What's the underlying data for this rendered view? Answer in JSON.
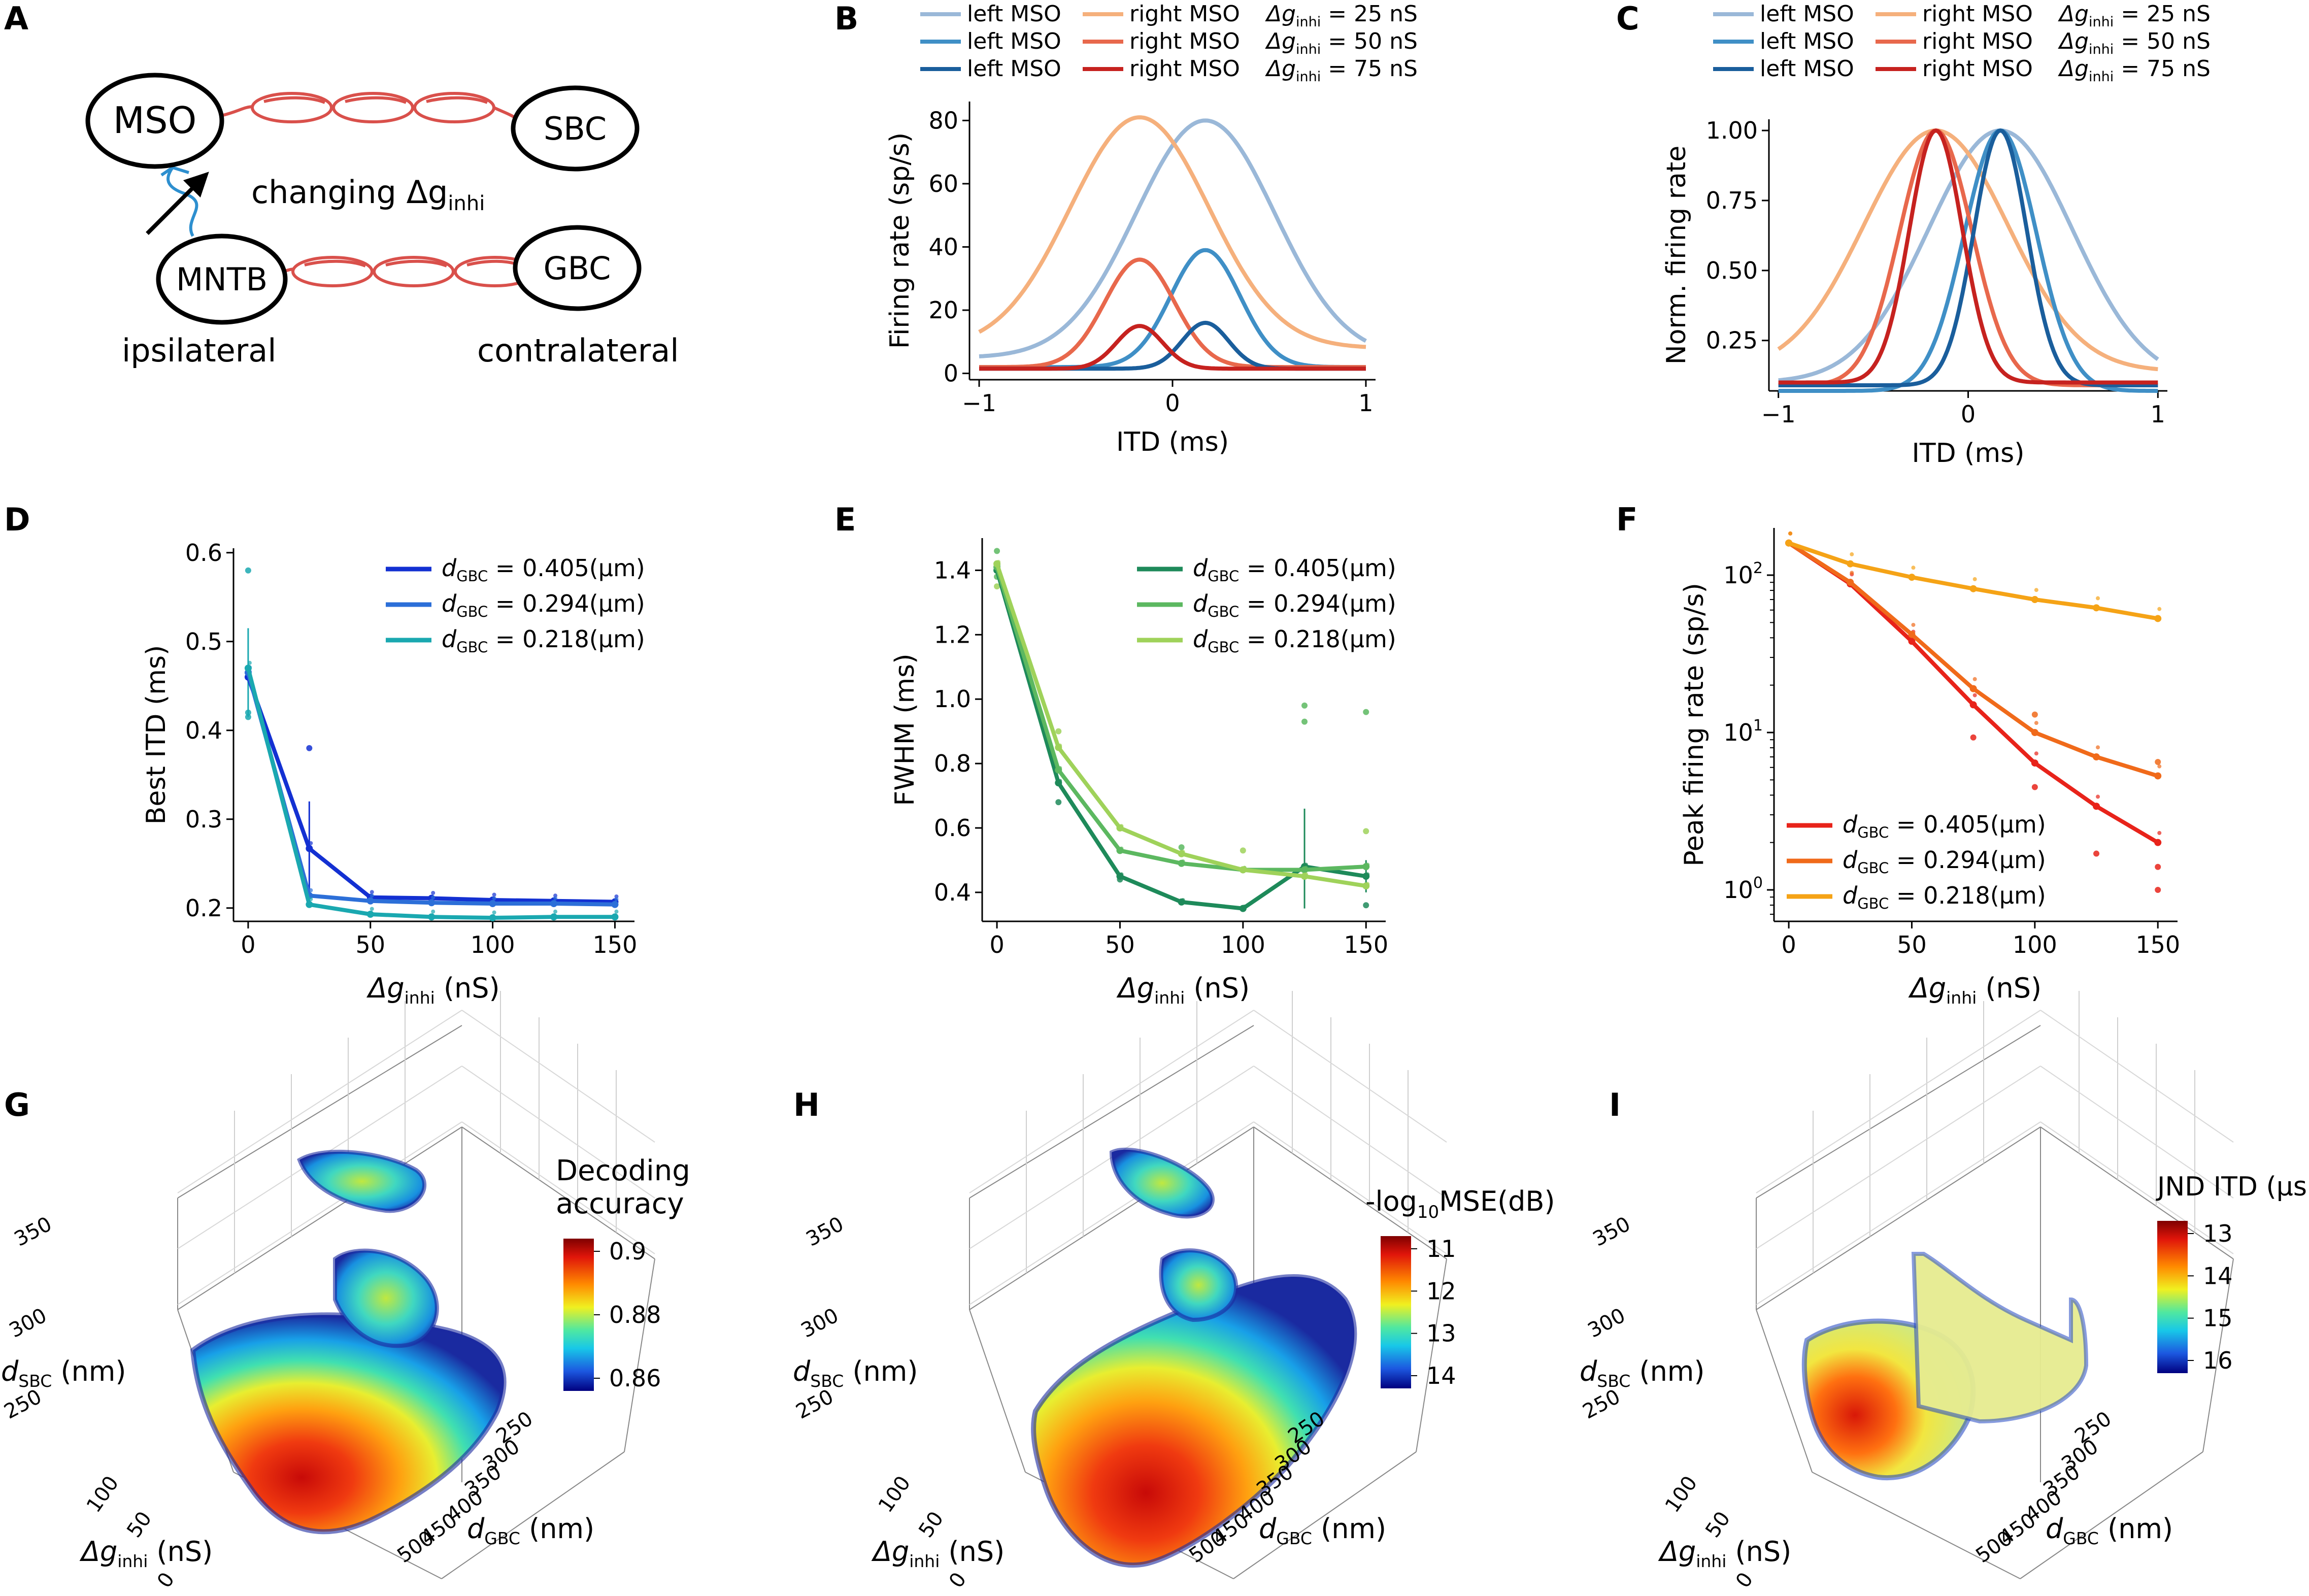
{
  "panel_labels": [
    "A",
    "B",
    "C",
    "D",
    "E",
    "F",
    "G",
    "H",
    "I"
  ],
  "schematic": {
    "nodes": {
      "mso": "MSO",
      "sbc": "SBC",
      "mntb": "MNTB",
      "gbc": "GBC"
    },
    "label_changing": "changing Δg",
    "label_changing_sub": "inhi",
    "label_ipsilateral": "ipsilateral",
    "label_contralateral": "contralateral"
  },
  "legend_tuning": {
    "rows": [
      {
        "left": "left MSO",
        "right": "right MSO",
        "dg": "Δg",
        "sub": "inhi",
        "value": " = 25 nS"
      },
      {
        "left": "left MSO",
        "right": "right MSO",
        "dg": "Δg",
        "sub": "inhi",
        "value": " = 50 nS"
      },
      {
        "left": "left MSO",
        "right": "right MSO",
        "dg": "Δg",
        "sub": "inhi",
        "value": " = 75 nS"
      }
    ],
    "left_colors": [
      "#9ab8d8",
      "#3f8fc6",
      "#1a5e9c"
    ],
    "right_colors": [
      "#f5b07c",
      "#e8684c",
      "#c6221f"
    ]
  },
  "legend_d": {
    "d": "d",
    "sub": "GBC",
    "entries": [
      " = 0.405(μm)",
      " = 0.294(μm)",
      " = 0.218(μm)"
    ]
  },
  "legend_e": {
    "d": "d",
    "sub": "GBC",
    "entries": [
      " = 0.405(μm)",
      " = 0.294(μm)",
      " = 0.218(μm)"
    ]
  },
  "legend_f": {
    "d": "d",
    "sub": "GBC",
    "entries": [
      " = 0.405(μm)",
      " = 0.294(μm)",
      " = 0.218(μm)"
    ]
  },
  "chart_data": [
    {
      "id": "B",
      "type": "line",
      "xlabel": "ITD (ms)",
      "ylabel": "Firing rate (sp/s)",
      "xlim": [
        -1.05,
        1.05
      ],
      "ylim": [
        -2,
        86
      ],
      "xticks": [
        -1,
        0,
        1
      ],
      "xtick_labels": [
        "−1",
        "0",
        "1"
      ],
      "yticks": [
        0,
        20,
        40,
        60,
        80
      ],
      "ytick_labels": [
        "0",
        "20",
        "40",
        "60",
        "80"
      ],
      "series": [
        {
          "name": "left MSO, Δg_inhi = 25 nS",
          "color": "#9ab8d8",
          "peak_x": 0.17,
          "peak": 80,
          "sigma": 0.36,
          "base": 5
        },
        {
          "name": "right MSO, Δg_inhi = 25 nS",
          "color": "#f5b07c",
          "peak_x": -0.17,
          "peak": 81,
          "sigma": 0.36,
          "base": 8
        },
        {
          "name": "left MSO, Δg_inhi = 50 nS",
          "color": "#3f8fc6",
          "peak_x": 0.17,
          "peak": 39,
          "sigma": 0.18,
          "base": 2
        },
        {
          "name": "right MSO, Δg_inhi = 50 nS",
          "color": "#e8684c",
          "peak_x": -0.17,
          "peak": 36,
          "sigma": 0.18,
          "base": 2
        },
        {
          "name": "left MSO, Δg_inhi = 75 nS",
          "color": "#1a5e9c",
          "peak_x": 0.17,
          "peak": 16,
          "sigma": 0.12,
          "base": 1.5
        },
        {
          "name": "right MSO, Δg_inhi = 75 nS",
          "color": "#c6221f",
          "peak_x": -0.17,
          "peak": 15,
          "sigma": 0.12,
          "base": 1.5
        }
      ]
    },
    {
      "id": "C",
      "type": "line",
      "xlabel": "ITD (ms)",
      "ylabel": "Norm. firing rate",
      "xlim": [
        -1.05,
        1.05
      ],
      "ylim": [
        0.07,
        1.04
      ],
      "xticks": [
        -1,
        0,
        1
      ],
      "xtick_labels": [
        "−1",
        "0",
        "1"
      ],
      "yticks": [
        0.25,
        0.5,
        0.75,
        1.0
      ],
      "ytick_labels": [
        "0.25",
        "0.50",
        "0.75",
        "1.00"
      ],
      "series": [
        {
          "name": "left MSO, 25 nS",
          "color": "#9ab8d8",
          "peak_x": 0.17,
          "peak": 1.0,
          "sigma": 0.38,
          "base": 0.1
        },
        {
          "name": "right MSO, 25 nS",
          "color": "#f5b07c",
          "peak_x": -0.17,
          "peak": 1.0,
          "sigma": 0.38,
          "base": 0.14
        },
        {
          "name": "left MSO, 50 nS",
          "color": "#3f8fc6",
          "peak_x": 0.17,
          "peak": 1.0,
          "sigma": 0.19,
          "base": 0.07
        },
        {
          "name": "right MSO, 50 nS",
          "color": "#e8684c",
          "peak_x": -0.17,
          "peak": 1.0,
          "sigma": 0.19,
          "base": 0.09
        },
        {
          "name": "left MSO, 75 nS",
          "color": "#1a5e9c",
          "peak_x": 0.17,
          "peak": 1.0,
          "sigma": 0.14,
          "base": 0.09
        },
        {
          "name": "right MSO, 75 nS",
          "color": "#c6221f",
          "peak_x": -0.17,
          "peak": 1.0,
          "sigma": 0.14,
          "base": 0.1
        }
      ]
    },
    {
      "id": "D",
      "type": "line",
      "xlabel": "Δg_inhi (nS)",
      "ylabel": "Best ITD (ms)",
      "xlim": [
        -6,
        158
      ],
      "ylim": [
        0.185,
        0.605
      ],
      "xticks": [
        0,
        50,
        100,
        150
      ],
      "xtick_labels": [
        "0",
        "50",
        "100",
        "150"
      ],
      "yticks": [
        0.2,
        0.3,
        0.4,
        0.5,
        0.6
      ],
      "ytick_labels": [
        "0.2",
        "0.3",
        "0.4",
        "0.5",
        "0.6"
      ],
      "x": [
        0,
        25,
        50,
        75,
        100,
        125,
        150
      ],
      "series": [
        {
          "name": "d_GBC = 0.405(μm)",
          "color": "#1330d2",
          "values": [
            0.46,
            0.267,
            0.212,
            0.211,
            0.209,
            0.208,
            0.207
          ]
        },
        {
          "name": "d_GBC = 0.294(μm)",
          "color": "#2c6fd8",
          "values": [
            0.465,
            0.214,
            0.208,
            0.206,
            0.205,
            0.205,
            0.204
          ]
        },
        {
          "name": "d_GBC = 0.218(μm)",
          "color": "#1aa8b0",
          "values": [
            0.47,
            0.204,
            0.193,
            0.19,
            0.189,
            0.19,
            0.19
          ]
        }
      ],
      "scatter": [
        [
          0,
          0.58,
          "#1aa8b0"
        ],
        [
          0,
          0.415,
          "#1aa8b0"
        ],
        [
          0,
          0.42,
          "#1aa8b0"
        ],
        [
          25,
          0.38,
          "#1330d2"
        ]
      ],
      "errorbars": [
        [
          0,
          0.415,
          0.515,
          "#1aa8b0"
        ],
        [
          25,
          0.21,
          0.32,
          "#1330d2"
        ]
      ]
    },
    {
      "id": "E",
      "type": "line",
      "xlabel": "Δg_inhi (nS)",
      "ylabel": "FWHM (ms)",
      "xlim": [
        -6,
        158
      ],
      "ylim": [
        0.31,
        1.5
      ],
      "xticks": [
        0,
        50,
        100,
        150
      ],
      "xtick_labels": [
        "0",
        "50",
        "100",
        "150"
      ],
      "yticks": [
        0.4,
        0.6,
        0.8,
        1.0,
        1.2,
        1.4
      ],
      "ytick_labels": [
        "0.4",
        "0.6",
        "0.8",
        "1.0",
        "1.2",
        "1.4"
      ],
      "x": [
        0,
        25,
        50,
        75,
        100,
        125,
        150
      ],
      "series": [
        {
          "name": "d_GBC = 0.405(μm)",
          "color": "#1e8a5a",
          "values": [
            1.4,
            0.74,
            0.45,
            0.37,
            0.35,
            0.48,
            0.45
          ]
        },
        {
          "name": "d_GBC = 0.294(μm)",
          "color": "#5cb860",
          "values": [
            1.41,
            0.78,
            0.53,
            0.49,
            0.47,
            0.47,
            0.48
          ]
        },
        {
          "name": "d_GBC = 0.218(μm)",
          "color": "#9fd25a",
          "values": [
            1.42,
            0.85,
            0.6,
            0.52,
            0.47,
            0.45,
            0.42
          ]
        }
      ],
      "scatter": [
        [
          0,
          1.46,
          "#5cb860"
        ],
        [
          0,
          1.38,
          "#5cb860"
        ],
        [
          0,
          1.35,
          "#9fd25a"
        ],
        [
          25,
          0.9,
          "#9fd25a"
        ],
        [
          25,
          0.68,
          "#1e8a5a"
        ],
        [
          50,
          0.44,
          "#1e8a5a"
        ],
        [
          75,
          0.54,
          "#5cb860"
        ],
        [
          100,
          0.53,
          "#9fd25a"
        ],
        [
          125,
          0.98,
          "#5cb860"
        ],
        [
          125,
          0.93,
          "#5cb860"
        ],
        [
          150,
          0.96,
          "#5cb860"
        ],
        [
          150,
          0.59,
          "#9fd25a"
        ],
        [
          150,
          0.36,
          "#1e8a5a"
        ]
      ],
      "errorbars": [
        [
          125,
          0.35,
          0.66,
          "#1e8a5a"
        ],
        [
          150,
          0.4,
          0.5,
          "#1e8a5a"
        ]
      ]
    },
    {
      "id": "F",
      "type": "line",
      "yscale": "log",
      "xlabel": "Δg_inhi (nS)",
      "ylabel": "Peak firing rate (sp/s)",
      "xlim": [
        -6,
        158
      ],
      "ylim_log10": [
        -0.2,
        2.3
      ],
      "xticks": [
        0,
        50,
        100,
        150
      ],
      "xtick_labels": [
        "0",
        "50",
        "100",
        "150"
      ],
      "yticks_log10": [
        0,
        1,
        2
      ],
      "ytick_base": "10",
      "ytick_exps": [
        "0",
        "1",
        "2"
      ],
      "x": [
        0,
        25,
        50,
        75,
        100,
        125,
        150
      ],
      "series": [
        {
          "name": "d_GBC = 0.405(μm)",
          "color": "#e8231a",
          "values": [
            160,
            88,
            38,
            15,
            6.4,
            3.4,
            2.0
          ]
        },
        {
          "name": "d_GBC = 0.294(μm)",
          "color": "#f06a1a",
          "values": [
            160,
            90,
            42,
            19,
            10,
            7,
            5.3
          ]
        },
        {
          "name": "d_GBC = 0.218(μm)",
          "color": "#f5a316",
          "values": [
            160,
            118,
            97,
            82,
            70,
            62,
            53
          ]
        }
      ],
      "scatter": [
        [
          75,
          9.3,
          "#e8231a"
        ],
        [
          100,
          4.5,
          "#e8231a"
        ],
        [
          125,
          1.7,
          "#e8231a"
        ],
        [
          150,
          1.0,
          "#e8231a"
        ],
        [
          150,
          1.4,
          "#e8231a"
        ],
        [
          100,
          13,
          "#f06a1a"
        ],
        [
          150,
          6.5,
          "#f06a1a"
        ]
      ]
    }
  ],
  "panel_g": {
    "cbar_title_1": "Decoding",
    "cbar_title_2": "accuracy",
    "cbar_ticks": [
      "0.9",
      "0.88",
      "0.86"
    ],
    "y_axis_label": "d",
    "y_axis_sub": "SBC",
    "y_axis_unit": " (nm)",
    "y_ticks": [
      "350",
      "300",
      "250"
    ],
    "x_axis_label": "Δg",
    "x_axis_sub": "inhi",
    "x_axis_unit": " (nS)",
    "x_ticks": [
      "100",
      "50",
      "0"
    ],
    "z_axis_label": "d",
    "z_axis_sub": "GBC",
    "z_axis_unit": " (nm)",
    "z_ticks": [
      "250",
      "300",
      "350",
      "400",
      "450",
      "500"
    ]
  },
  "panel_h": {
    "cbar_title_1": "-log",
    "cbar_title_sub": "10",
    "cbar_title_2": "MSE(dB)",
    "cbar_ticks": [
      "11",
      "12",
      "13",
      "14"
    ],
    "y_axis_label": "d",
    "y_axis_sub": "SBC",
    "y_axis_unit": " (nm)",
    "y_ticks": [
      "350",
      "300",
      "250"
    ],
    "x_axis_label": "Δg",
    "x_axis_sub": "inhi",
    "x_axis_unit": " (nS)",
    "x_ticks": [
      "100",
      "50",
      "0"
    ],
    "z_axis_label": "d",
    "z_axis_sub": "GBC",
    "z_axis_unit": " (nm)",
    "z_ticks": [
      "250",
      "300",
      "350",
      "400",
      "450",
      "500"
    ]
  },
  "panel_i": {
    "cbar_title_1": "JND ITD (μs)",
    "cbar_ticks": [
      "13",
      "14",
      "15",
      "16"
    ],
    "y_axis_label": "d",
    "y_axis_sub": "SBC",
    "y_axis_unit": " (nm)",
    "y_ticks": [
      "350",
      "300",
      "250"
    ],
    "x_axis_label": "Δg",
    "x_axis_sub": "inhi",
    "x_axis_unit": " (nS)",
    "x_ticks": [
      "100",
      "50",
      "0"
    ],
    "z_axis_label": "d",
    "z_axis_sub": "GBC",
    "z_axis_unit": " (nm)",
    "z_ticks": [
      "250",
      "300",
      "350",
      "400",
      "450",
      "500"
    ]
  }
}
